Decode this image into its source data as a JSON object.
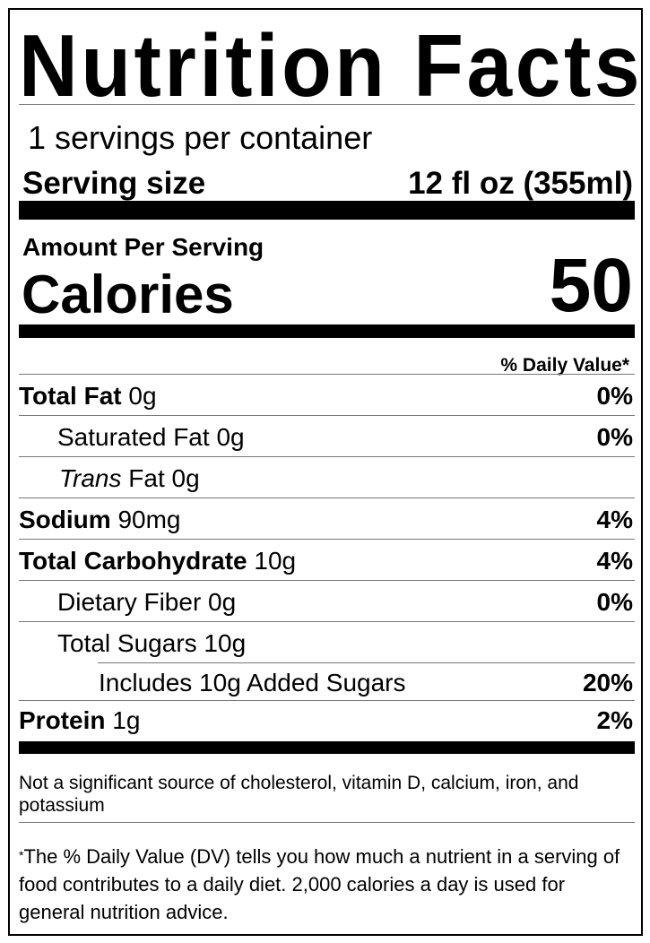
{
  "title": "Nutrition Facts",
  "servings_per_container": "1 servings per container",
  "serving_size": {
    "label": "Serving size",
    "value": "12 fl oz (355ml)"
  },
  "amount_per_serving": "Amount Per Serving",
  "calories": {
    "label": "Calories",
    "value": "50"
  },
  "daily_value_header": "% Daily Value*",
  "nutrients": [
    {
      "name": "Total Fat",
      "amount": "0g",
      "dv": "0%"
    },
    {
      "name": "Saturated Fat",
      "amount": "0g",
      "dv": "0%"
    },
    {
      "name_italic": "Trans",
      "name": "Fat",
      "amount": "0g",
      "dv": ""
    },
    {
      "name": "Sodium",
      "amount": "90mg",
      "dv": "4%"
    },
    {
      "name": "Total Carbohydrate",
      "amount": "10g",
      "dv": "4%"
    },
    {
      "name": "Dietary Fiber",
      "amount": "0g",
      "dv": "0%"
    },
    {
      "name": "Total Sugars",
      "amount": "10g",
      "dv": ""
    },
    {
      "name": "Includes 10g Added Sugars",
      "amount": "",
      "dv": "20%"
    },
    {
      "name": "Protein",
      "amount": "1g",
      "dv": "2%"
    }
  ],
  "not_significant_note": "Not a significant source of cholesterol, vitamin D, calcium, iron, and potassium",
  "footnote": {
    "asterisk": "*",
    "text": "The % Daily Value (DV) tells you how much a nutrient in a serving of food contributes to a daily diet. 2,000 calories a day is used for general nutrition advice."
  }
}
